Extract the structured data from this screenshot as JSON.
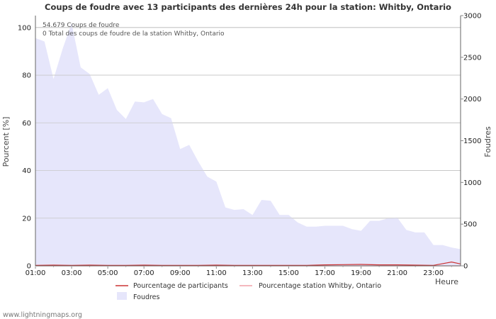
{
  "chart_data": {
    "type": "area",
    "title": "Coups de foudre avec 13 participants des dernières 24h pour la station: Whitby, Ontario",
    "ylabel_left": "Pourcent   [%]",
    "ylabel_right": "Foudres",
    "xlabel": "Heure",
    "ylim_left": [
      0,
      105
    ],
    "ylim_right": [
      0,
      3000
    ],
    "y_ticks_left": [
      "0",
      "20",
      "40",
      "60",
      "80",
      "100"
    ],
    "y_ticks_right": [
      "0",
      "500",
      "1000",
      "1500",
      "2000",
      "2500",
      "3000"
    ],
    "x_ticks": [
      "01:00",
      "03:00",
      "05:00",
      "07:00",
      "09:00",
      "11:00",
      "13:00",
      "15:00",
      "17:00",
      "19:00",
      "21:00",
      "23:00"
    ],
    "x_range_hours": [
      1,
      24.5
    ],
    "annotations": [
      "54.679  Coups de foudre",
      "0 Total des coups de foudre de la station Whitby, Ontario"
    ],
    "series": [
      {
        "name": "Foudres",
        "axis": "right",
        "color": "#e6e6fb",
        "hours": [
          1.0,
          1.5,
          2.0,
          2.5,
          3.0,
          3.5,
          4.0,
          4.5,
          5.0,
          5.5,
          6.0,
          6.5,
          7.0,
          7.5,
          8.0,
          8.5,
          9.0,
          9.5,
          10.0,
          10.5,
          11.0,
          11.5,
          12.0,
          12.5,
          13.0,
          13.5,
          14.0,
          14.5,
          15.0,
          15.5,
          16.0,
          16.5,
          17.0,
          17.5,
          18.0,
          18.5,
          19.0,
          19.5,
          20.0,
          20.5,
          21.0,
          21.5,
          22.0,
          22.5,
          23.0,
          23.5,
          24.0,
          24.5
        ],
        "values": [
          2730,
          2690,
          2240,
          2600,
          2910,
          2380,
          2300,
          2050,
          2130,
          1870,
          1760,
          1970,
          1960,
          2000,
          1820,
          1770,
          1400,
          1450,
          1250,
          1070,
          1010,
          700,
          670,
          680,
          610,
          790,
          780,
          610,
          610,
          520,
          470,
          470,
          480,
          480,
          480,
          440,
          420,
          540,
          540,
          570,
          580,
          430,
          400,
          400,
          250,
          250,
          220,
          200
        ]
      },
      {
        "name": "Pourcentage de participants",
        "axis": "left",
        "color": "#cc3333",
        "hours": [
          1.0,
          2.0,
          3.0,
          4.0,
          5.0,
          6.0,
          7.0,
          8.0,
          9.0,
          10.0,
          11.0,
          12.0,
          13.0,
          14.0,
          15.0,
          16.0,
          17.0,
          18.0,
          19.0,
          20.0,
          21.0,
          22.0,
          23.0,
          24.0,
          24.5
        ],
        "values": [
          0.2,
          0.3,
          0.2,
          0.3,
          0.2,
          0.2,
          0.3,
          0.2,
          0.2,
          0.2,
          0.3,
          0.2,
          0.2,
          0.2,
          0.2,
          0.2,
          0.4,
          0.5,
          0.6,
          0.4,
          0.4,
          0.3,
          0.2,
          1.6,
          0.8
        ]
      },
      {
        "name": "Pourcentage station Whitby, Ontario",
        "axis": "left",
        "color": "#f0a0a8",
        "hours": [
          1.0,
          24.5
        ],
        "values": [
          0,
          0
        ]
      }
    ]
  },
  "credit": "www.lightningmaps.org"
}
